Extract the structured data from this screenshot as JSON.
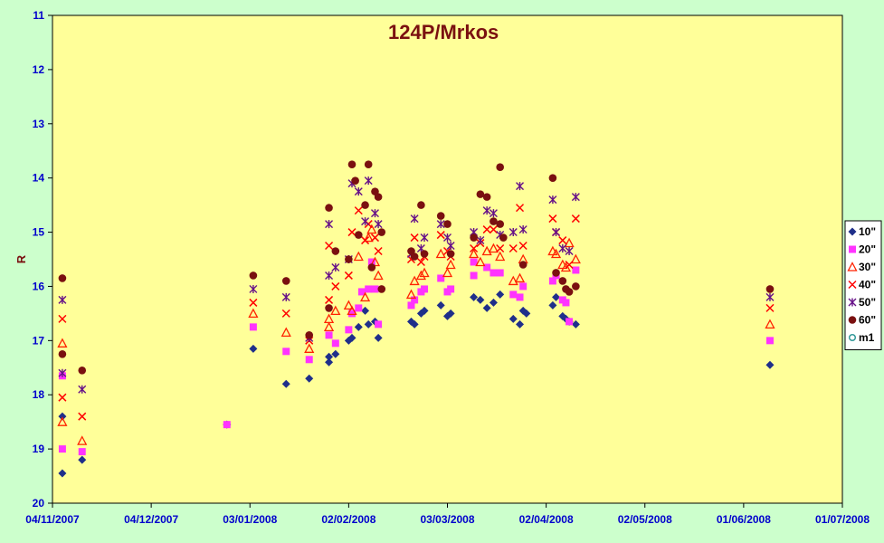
{
  "chart_data": {
    "type": "scatter",
    "title": "124P/Mrkos",
    "xlabel": "",
    "ylabel": "R",
    "ylim": [
      20,
      11
    ],
    "y_inverted": true,
    "y_ticks": [
      "11",
      "12",
      "13",
      "14",
      "15",
      "16",
      "17",
      "18",
      "19",
      "20"
    ],
    "xlim": [
      "04/11/2007",
      "01/07/2008"
    ],
    "x_ticks": [
      "04/11/2007",
      "04/12/2007",
      "03/01/2008",
      "02/02/2008",
      "03/03/2008",
      "02/04/2008",
      "02/05/2008",
      "01/06/2008",
      "01/07/2008"
    ],
    "grid": false,
    "legend_position": "right",
    "plot_background": "#ffff99",
    "figure_background": "#ccffcc",
    "series": [
      {
        "name": "10\"",
        "marker": "diamond",
        "color": "#1f2f8a",
        "points": [
          [
            "2007-11-07",
            19.45
          ],
          [
            "2007-11-07",
            18.4
          ],
          [
            "2007-11-13",
            19.2
          ],
          [
            "2007-12-27",
            18.55
          ],
          [
            "2008-01-04",
            17.15
          ],
          [
            "2008-01-14",
            17.8
          ],
          [
            "2008-01-21",
            17.7
          ],
          [
            "2008-01-27",
            17.4
          ],
          [
            "2008-01-27",
            17.3
          ],
          [
            "2008-01-29",
            17.25
          ],
          [
            "2008-02-02",
            17.0
          ],
          [
            "2008-02-03",
            16.95
          ],
          [
            "2008-02-05",
            16.75
          ],
          [
            "2008-02-07",
            16.45
          ],
          [
            "2008-02-08",
            16.7
          ],
          [
            "2008-02-10",
            16.65
          ],
          [
            "2008-02-11",
            16.95
          ],
          [
            "2008-02-21",
            16.65
          ],
          [
            "2008-02-22",
            16.7
          ],
          [
            "2008-02-24",
            16.5
          ],
          [
            "2008-02-25",
            16.45
          ],
          [
            "2008-03-01",
            16.35
          ],
          [
            "2008-03-03",
            16.55
          ],
          [
            "2008-03-04",
            16.5
          ],
          [
            "2008-03-11",
            16.2
          ],
          [
            "2008-03-13",
            16.25
          ],
          [
            "2008-03-15",
            16.4
          ],
          [
            "2008-03-17",
            16.3
          ],
          [
            "2008-03-19",
            16.15
          ],
          [
            "2008-03-23",
            16.6
          ],
          [
            "2008-03-25",
            16.7
          ],
          [
            "2008-03-26",
            16.45
          ],
          [
            "2008-03-27",
            16.5
          ],
          [
            "2008-04-04",
            16.35
          ],
          [
            "2008-04-05",
            16.2
          ],
          [
            "2008-04-07",
            16.55
          ],
          [
            "2008-04-08",
            16.6
          ],
          [
            "2008-04-09",
            16.65
          ],
          [
            "2008-04-11",
            16.7
          ],
          [
            "2008-06-09",
            17.45
          ]
        ]
      },
      {
        "name": "20\"",
        "marker": "square",
        "color": "#ff33ff",
        "points": [
          [
            "2007-11-07",
            17.65
          ],
          [
            "2007-11-07",
            19.0
          ],
          [
            "2007-11-13",
            19.05
          ],
          [
            "2007-12-27",
            18.55
          ],
          [
            "2008-01-04",
            16.75
          ],
          [
            "2008-01-14",
            17.2
          ],
          [
            "2008-01-21",
            17.35
          ],
          [
            "2008-01-27",
            16.9
          ],
          [
            "2008-01-29",
            17.05
          ],
          [
            "2008-02-02",
            16.8
          ],
          [
            "2008-02-03",
            16.5
          ],
          [
            "2008-02-05",
            16.4
          ],
          [
            "2008-02-06",
            16.1
          ],
          [
            "2008-02-08",
            16.05
          ],
          [
            "2008-02-09",
            15.55
          ],
          [
            "2008-02-10",
            16.05
          ],
          [
            "2008-02-11",
            16.7
          ],
          [
            "2008-02-21",
            16.35
          ],
          [
            "2008-02-22",
            16.25
          ],
          [
            "2008-02-24",
            16.1
          ],
          [
            "2008-02-25",
            16.05
          ],
          [
            "2008-03-01",
            15.85
          ],
          [
            "2008-03-03",
            16.1
          ],
          [
            "2008-03-04",
            16.05
          ],
          [
            "2008-03-11",
            15.8
          ],
          [
            "2008-03-11",
            15.55
          ],
          [
            "2008-03-15",
            15.65
          ],
          [
            "2008-03-17",
            15.75
          ],
          [
            "2008-03-19",
            15.75
          ],
          [
            "2008-03-23",
            16.15
          ],
          [
            "2008-03-25",
            16.2
          ],
          [
            "2008-03-26",
            16.0
          ],
          [
            "2008-04-04",
            15.9
          ],
          [
            "2008-04-05",
            15.8
          ],
          [
            "2008-04-07",
            16.25
          ],
          [
            "2008-04-08",
            16.3
          ],
          [
            "2008-04-09",
            16.65
          ],
          [
            "2008-04-11",
            15.7
          ],
          [
            "2008-06-09",
            17.0
          ]
        ]
      },
      {
        "name": "30\"",
        "marker": "triangle",
        "color": "#ff2200",
        "points": [
          [
            "2007-11-07",
            17.05
          ],
          [
            "2007-11-07",
            18.5
          ],
          [
            "2007-11-13",
            18.85
          ],
          [
            "2008-01-04",
            16.5
          ],
          [
            "2008-01-14",
            16.85
          ],
          [
            "2008-01-21",
            17.15
          ],
          [
            "2008-01-27",
            16.6
          ],
          [
            "2008-01-27",
            16.75
          ],
          [
            "2008-01-29",
            16.45
          ],
          [
            "2008-02-02",
            16.35
          ],
          [
            "2008-02-03",
            16.45
          ],
          [
            "2008-02-05",
            15.45
          ],
          [
            "2008-02-07",
            16.2
          ],
          [
            "2008-02-08",
            15.1
          ],
          [
            "2008-02-09",
            14.95
          ],
          [
            "2008-02-10",
            15.55
          ],
          [
            "2008-02-11",
            15.8
          ],
          [
            "2008-02-21",
            16.15
          ],
          [
            "2008-02-22",
            15.9
          ],
          [
            "2008-02-24",
            15.8
          ],
          [
            "2008-02-25",
            15.75
          ],
          [
            "2008-03-01",
            15.4
          ],
          [
            "2008-03-03",
            15.75
          ],
          [
            "2008-03-04",
            15.6
          ],
          [
            "2008-03-11",
            15.4
          ],
          [
            "2008-03-13",
            15.55
          ],
          [
            "2008-03-15",
            15.35
          ],
          [
            "2008-03-17",
            15.3
          ],
          [
            "2008-03-19",
            15.45
          ],
          [
            "2008-03-23",
            15.9
          ],
          [
            "2008-03-25",
            15.85
          ],
          [
            "2008-03-26",
            15.5
          ],
          [
            "2008-04-04",
            15.35
          ],
          [
            "2008-04-05",
            15.4
          ],
          [
            "2008-04-07",
            15.6
          ],
          [
            "2008-04-08",
            15.65
          ],
          [
            "2008-04-09",
            15.2
          ],
          [
            "2008-04-11",
            15.5
          ],
          [
            "2008-06-09",
            16.7
          ]
        ]
      },
      {
        "name": "40\"",
        "marker": "x",
        "color": "#ff0000",
        "points": [
          [
            "2007-11-07",
            16.6
          ],
          [
            "2007-11-07",
            18.05
          ],
          [
            "2007-11-13",
            18.4
          ],
          [
            "2008-01-04",
            16.3
          ],
          [
            "2008-01-14",
            16.5
          ],
          [
            "2008-01-21",
            17.0
          ],
          [
            "2008-01-27",
            15.25
          ],
          [
            "2008-01-27",
            16.25
          ],
          [
            "2008-01-29",
            16.0
          ],
          [
            "2008-02-02",
            15.8
          ],
          [
            "2008-02-03",
            15.0
          ],
          [
            "2008-02-05",
            14.6
          ],
          [
            "2008-02-07",
            15.15
          ],
          [
            "2008-02-08",
            14.85
          ],
          [
            "2008-02-10",
            15.1
          ],
          [
            "2008-02-11",
            15.35
          ],
          [
            "2008-02-21",
            15.5
          ],
          [
            "2008-02-22",
            15.1
          ],
          [
            "2008-02-24",
            15.55
          ],
          [
            "2008-02-25",
            15.45
          ],
          [
            "2008-03-01",
            15.05
          ],
          [
            "2008-03-03",
            15.35
          ],
          [
            "2008-03-04",
            15.45
          ],
          [
            "2008-03-11",
            15.3
          ],
          [
            "2008-03-13",
            15.2
          ],
          [
            "2008-03-15",
            14.95
          ],
          [
            "2008-03-17",
            14.95
          ],
          [
            "2008-03-19",
            15.3
          ],
          [
            "2008-03-23",
            15.3
          ],
          [
            "2008-03-25",
            14.55
          ],
          [
            "2008-03-26",
            15.25
          ],
          [
            "2008-04-04",
            14.75
          ],
          [
            "2008-04-05",
            15.0
          ],
          [
            "2008-04-07",
            15.15
          ],
          [
            "2008-04-09",
            15.6
          ],
          [
            "2008-04-11",
            14.75
          ],
          [
            "2008-06-09",
            16.4
          ]
        ]
      },
      {
        "name": "50\"",
        "marker": "star",
        "color": "#661188",
        "points": [
          [
            "2007-11-07",
            16.25
          ],
          [
            "2007-11-07",
            17.6
          ],
          [
            "2007-11-13",
            17.9
          ],
          [
            "2008-01-04",
            16.05
          ],
          [
            "2008-01-14",
            16.2
          ],
          [
            "2008-01-21",
            16.95
          ],
          [
            "2008-01-27",
            14.85
          ],
          [
            "2008-01-27",
            15.8
          ],
          [
            "2008-01-29",
            15.65
          ],
          [
            "2008-02-02",
            15.5
          ],
          [
            "2008-02-03",
            14.1
          ],
          [
            "2008-02-05",
            14.25
          ],
          [
            "2008-02-07",
            14.8
          ],
          [
            "2008-02-08",
            14.05
          ],
          [
            "2008-02-10",
            14.65
          ],
          [
            "2008-02-11",
            14.85
          ],
          [
            "2008-02-21",
            15.4
          ],
          [
            "2008-02-22",
            14.75
          ],
          [
            "2008-02-24",
            15.3
          ],
          [
            "2008-02-25",
            15.1
          ],
          [
            "2008-03-01",
            14.85
          ],
          [
            "2008-03-03",
            15.1
          ],
          [
            "2008-03-04",
            15.25
          ],
          [
            "2008-03-11",
            15.0
          ],
          [
            "2008-03-13",
            15.15
          ],
          [
            "2008-03-15",
            14.6
          ],
          [
            "2008-03-17",
            14.65
          ],
          [
            "2008-03-19",
            15.05
          ],
          [
            "2008-03-23",
            15.0
          ],
          [
            "2008-03-25",
            14.15
          ],
          [
            "2008-03-26",
            14.95
          ],
          [
            "2008-04-04",
            14.4
          ],
          [
            "2008-04-05",
            15.0
          ],
          [
            "2008-04-07",
            15.3
          ],
          [
            "2008-04-09",
            15.35
          ],
          [
            "2008-04-11",
            14.35
          ],
          [
            "2008-06-09",
            16.2
          ]
        ]
      },
      {
        "name": "60\"",
        "marker": "circle",
        "color": "#7a1010",
        "points": [
          [
            "2007-11-07",
            15.85
          ],
          [
            "2007-11-07",
            17.25
          ],
          [
            "2007-11-13",
            17.55
          ],
          [
            "2008-01-04",
            15.8
          ],
          [
            "2008-01-14",
            15.9
          ],
          [
            "2008-01-21",
            16.9
          ],
          [
            "2008-01-27",
            14.55
          ],
          [
            "2008-01-27",
            16.4
          ],
          [
            "2008-01-29",
            15.35
          ],
          [
            "2008-02-02",
            15.5
          ],
          [
            "2008-02-03",
            13.75
          ],
          [
            "2008-02-04",
            14.05
          ],
          [
            "2008-02-05",
            15.05
          ],
          [
            "2008-02-07",
            14.5
          ],
          [
            "2008-02-08",
            13.75
          ],
          [
            "2008-02-09",
            15.65
          ],
          [
            "2008-02-10",
            14.25
          ],
          [
            "2008-02-11",
            14.35
          ],
          [
            "2008-02-12",
            15.0
          ],
          [
            "2008-02-12",
            16.05
          ],
          [
            "2008-02-21",
            15.35
          ],
          [
            "2008-02-22",
            15.45
          ],
          [
            "2008-02-24",
            14.5
          ],
          [
            "2008-02-25",
            15.4
          ],
          [
            "2008-03-01",
            14.7
          ],
          [
            "2008-03-03",
            14.85
          ],
          [
            "2008-03-04",
            15.4
          ],
          [
            "2008-03-11",
            15.1
          ],
          [
            "2008-03-13",
            14.3
          ],
          [
            "2008-03-15",
            14.35
          ],
          [
            "2008-03-17",
            14.8
          ],
          [
            "2008-03-19",
            13.8
          ],
          [
            "2008-03-19",
            14.85
          ],
          [
            "2008-03-20",
            15.1
          ],
          [
            "2008-03-26",
            15.6
          ],
          [
            "2008-04-04",
            14.0
          ],
          [
            "2008-04-05",
            15.75
          ],
          [
            "2008-04-07",
            15.9
          ],
          [
            "2008-04-08",
            16.05
          ],
          [
            "2008-04-09",
            16.1
          ],
          [
            "2008-04-11",
            16.0
          ],
          [
            "2008-06-09",
            16.05
          ]
        ]
      },
      {
        "name": "m1",
        "marker": "hollow-circle",
        "color": "#339999",
        "points": []
      }
    ]
  }
}
